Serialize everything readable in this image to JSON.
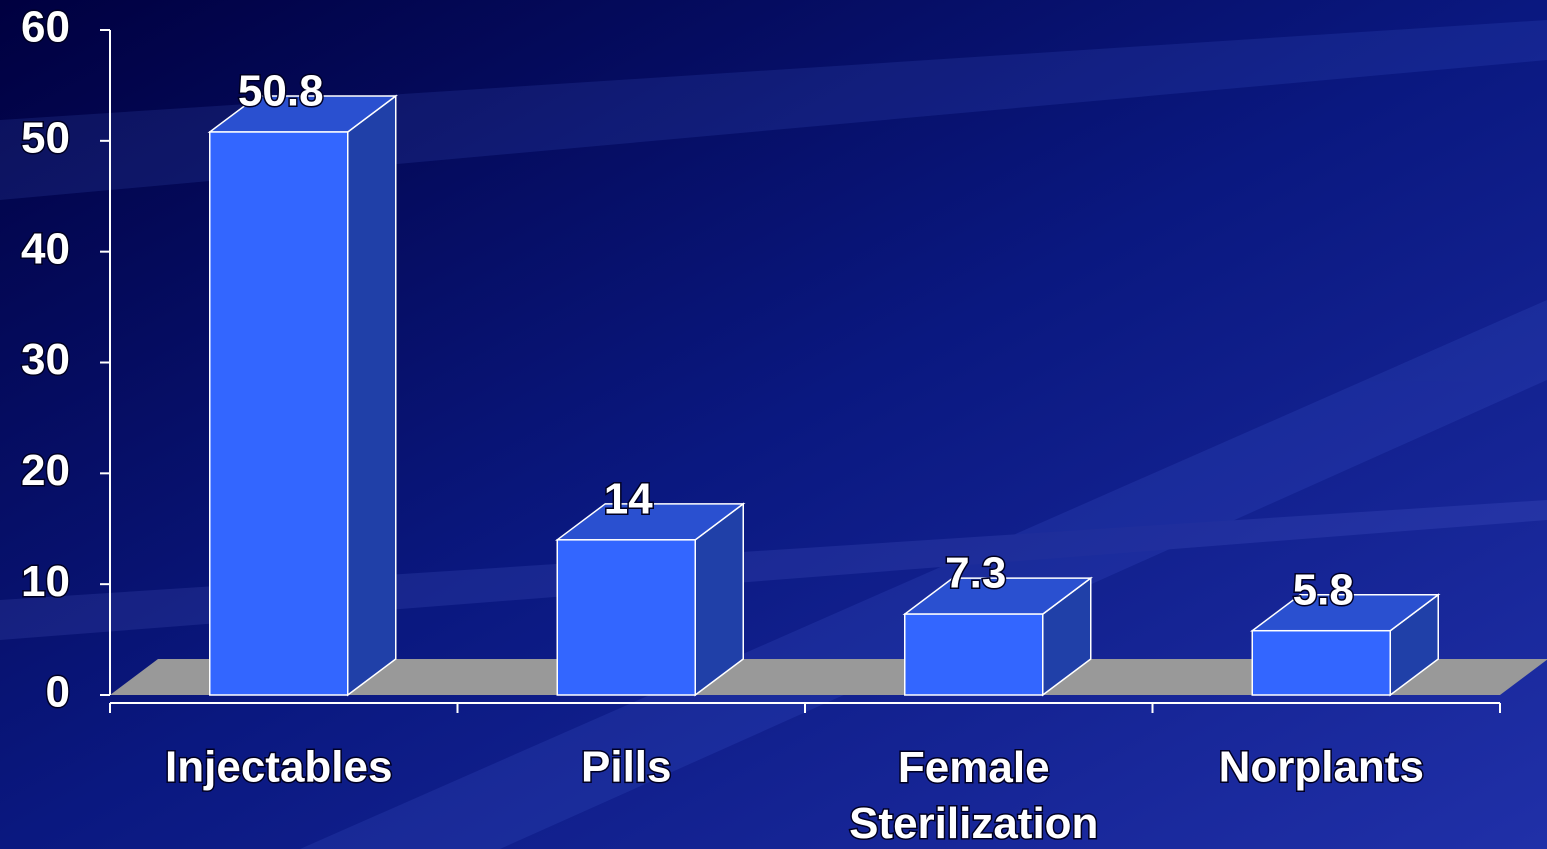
{
  "chart_data": {
    "type": "bar",
    "categories": [
      "Injectables",
      "Pills",
      "Female Sterilization",
      "Norplants"
    ],
    "values": [
      50.8,
      14,
      7.3,
      5.8
    ],
    "color": "#3366ff",
    "ylim": [
      0,
      60
    ],
    "yticks": [
      0,
      10,
      20,
      30,
      40,
      50,
      60
    ]
  }
}
